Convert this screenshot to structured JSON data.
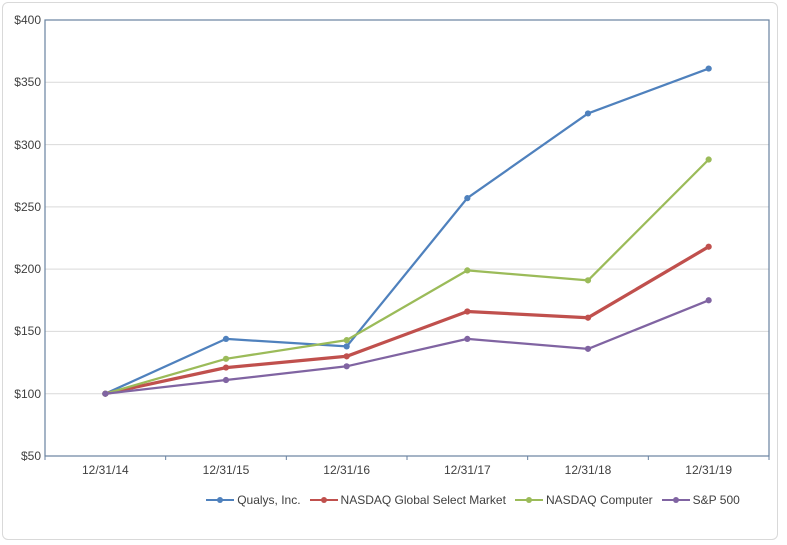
{
  "chart_data": {
    "type": "line",
    "title": "",
    "xlabel": "",
    "ylabel": "",
    "x_categories": [
      "12/31/14",
      "12/31/15",
      "12/31/16",
      "12/31/17",
      "12/31/18",
      "12/31/19"
    ],
    "y_tick_labels": [
      "$50",
      "$100",
      "$150",
      "$200",
      "$250",
      "$300",
      "$350",
      "$400"
    ],
    "y_tick_values": [
      50,
      100,
      150,
      200,
      250,
      300,
      350,
      400
    ],
    "ylim": [
      50,
      400
    ],
    "grid": true,
    "legend_position": "bottom",
    "series": [
      {
        "name": "Qualys, Inc.",
        "color": "#4F81BD",
        "line_width": 2.25,
        "values": [
          100,
          144,
          138,
          257,
          325,
          361
        ]
      },
      {
        "name": "NASDAQ Global Select Market",
        "color": "#C0504D",
        "line_width": 3.25,
        "values": [
          100,
          121,
          130,
          166,
          161,
          218
        ]
      },
      {
        "name": "NASDAQ Computer",
        "color": "#9BBB59",
        "line_width": 2.25,
        "values": [
          100,
          128,
          143,
          199,
          191,
          288
        ]
      },
      {
        "name": "S&P 500",
        "color": "#8064A2",
        "line_width": 2.25,
        "values": [
          100,
          111,
          122,
          144,
          136,
          175
        ]
      }
    ]
  },
  "colors": {
    "axis": "#6982A0",
    "grid": "#D9D9D9",
    "text": "#404040",
    "outer_border": "#D9D9D9",
    "background": "#FFFFFF"
  }
}
